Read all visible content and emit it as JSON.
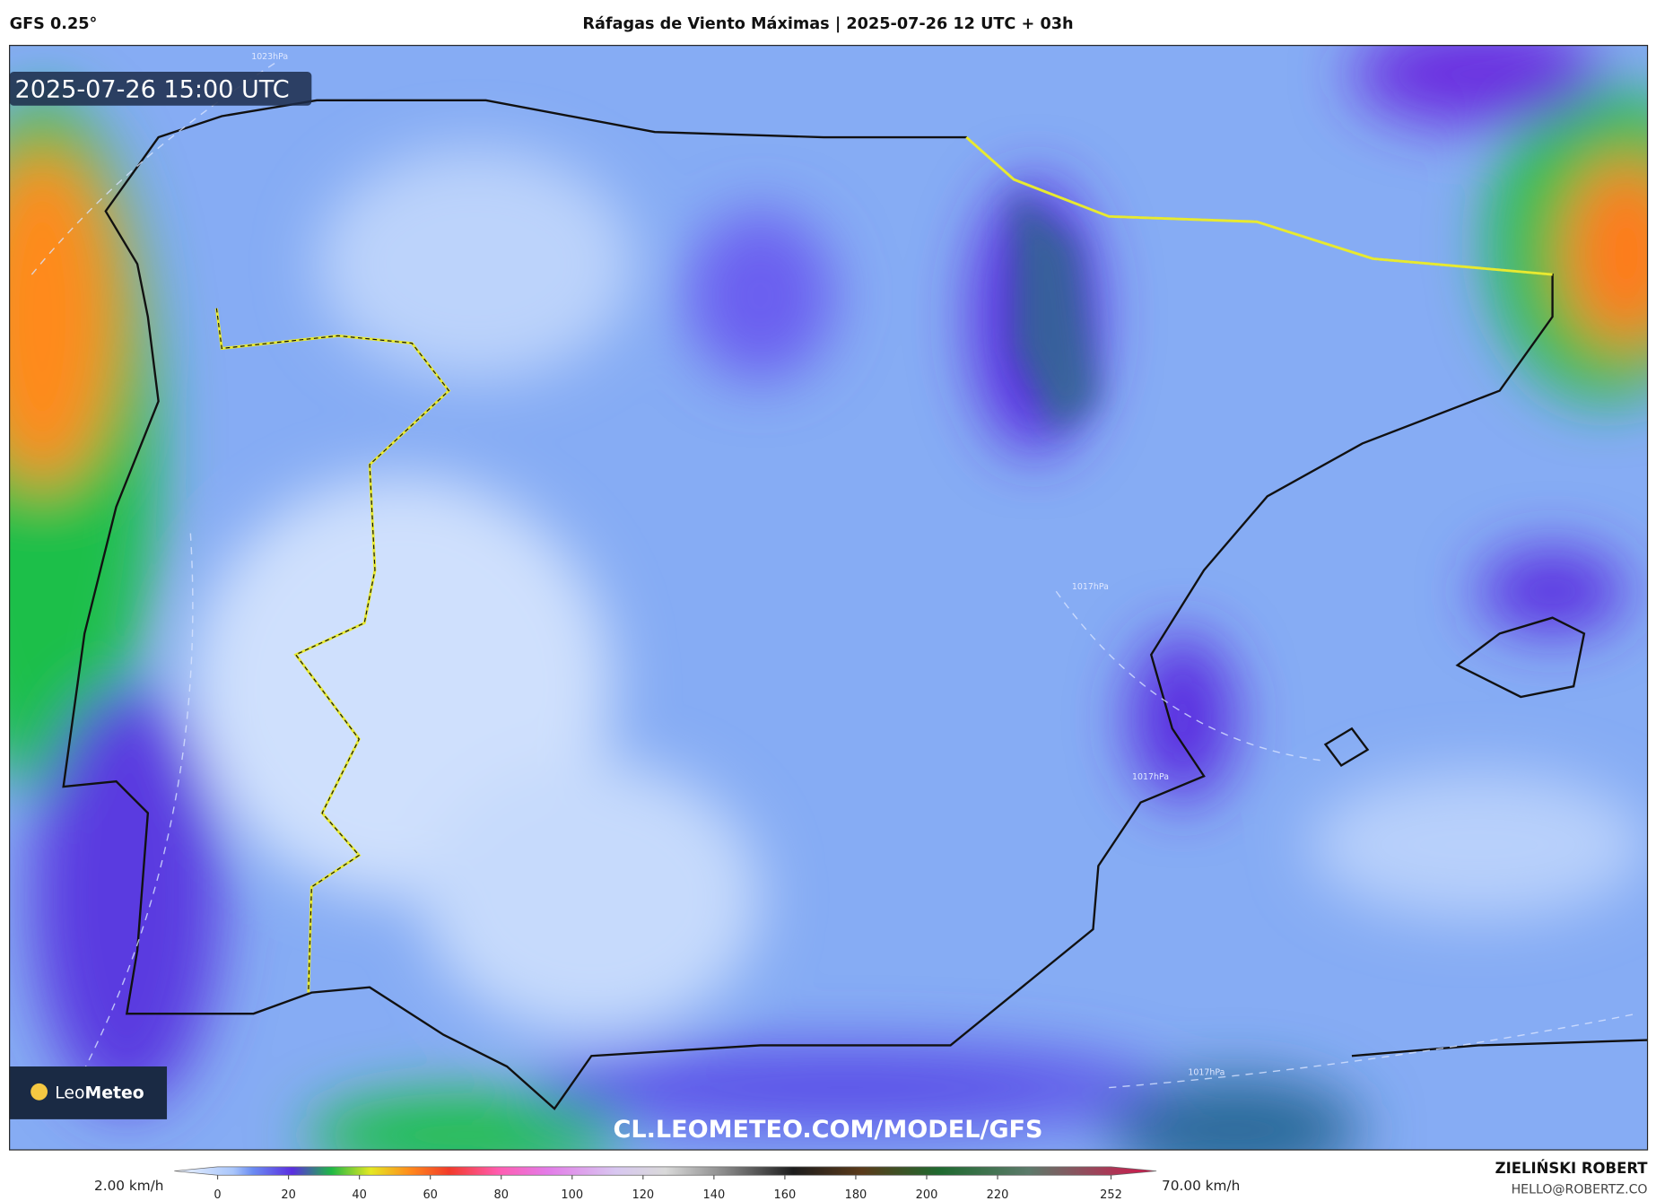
{
  "header": {
    "model": "GFS 0.25°",
    "title": "Ráfagas de Viento Máximas | 2025-07-26 12 UTC + 03h"
  },
  "map": {
    "valid_time": "2025-07-26 15:00 UTC",
    "isobar_labels": [
      "1023hPa",
      "1017hPa",
      "1017hPa",
      "1017hPa"
    ],
    "logo_light": "Leo",
    "logo_bold": "Meteo",
    "url": "CL.LEOMETEO.COM/MODEL/GFS"
  },
  "colorbar": {
    "min_label": "2.00 km/h",
    "max_label": "70.00 km/h",
    "ticks": [
      0,
      20,
      40,
      60,
      80,
      100,
      120,
      140,
      160,
      180,
      200,
      220,
      252
    ]
  },
  "credits": {
    "name": "ZIELIŃSKI ROBERT",
    "email": "HELLO@ROBERTZ.CO"
  }
}
